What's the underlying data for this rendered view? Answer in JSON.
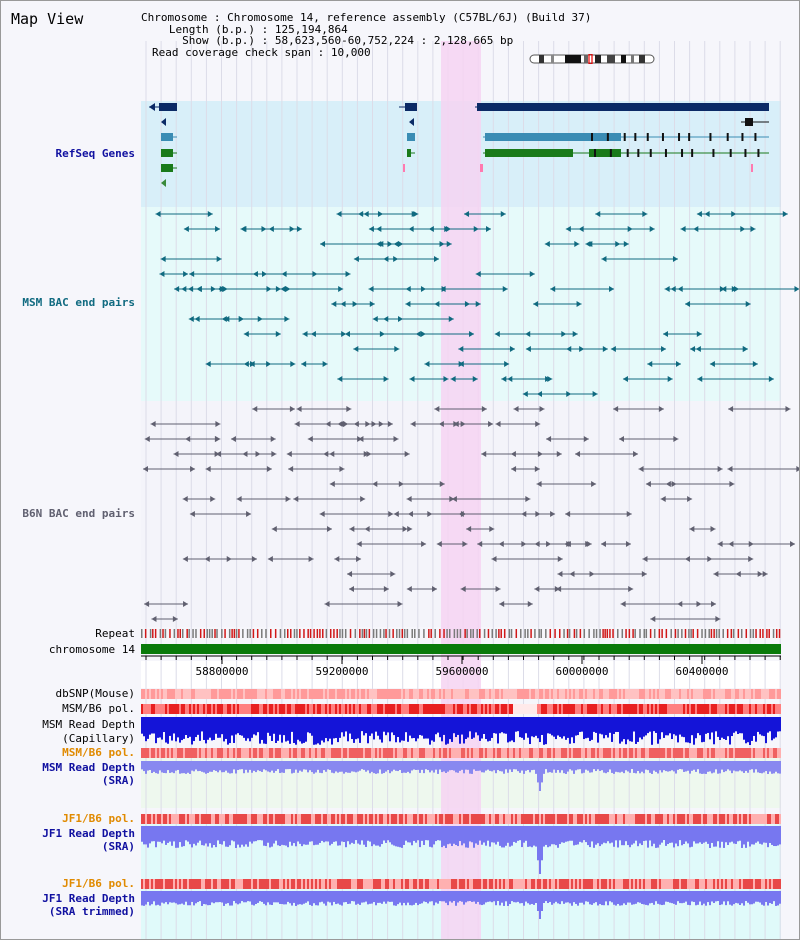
{
  "page": {
    "title": "Map View"
  },
  "header": {
    "rows": [
      {
        "key": "Chromosome",
        "value": "Chromosome 14, reference assembly (C57BL/6J) (Build 37)"
      },
      {
        "key": "Length (b.p.)",
        "value": "125,194,864"
      },
      {
        "key": "Show (b.p.)",
        "value": "58,623,560-60,752,224 : 2,128,665 bp"
      },
      {
        "key": "Read coverage check span",
        "value": "10,000"
      }
    ]
  },
  "tracks": {
    "refseq": {
      "label": "RefSeq Genes",
      "color": "#1010a0"
    },
    "msm_bac": {
      "label": "MSM BAC end pairs",
      "color": "#106a80"
    },
    "b6n_bac": {
      "label": "B6N BAC end pairs",
      "color": "#606070"
    },
    "repeat": {
      "label": "Repeat"
    },
    "chromosome": {
      "label": "chromosome 14",
      "color": "#0a7a0a"
    },
    "dbsnp": {
      "label": "dbSNP(Mouse)"
    },
    "msm_b6_pol_1": {
      "label": "MSM/B6 pol."
    },
    "msm_depth_cap": {
      "label_line1": "MSM Read Depth",
      "label_line2": "(Capillary)"
    },
    "msm_b6_pol_2": {
      "label": "MSM/B6 pol.",
      "color": "#e08a00"
    },
    "msm_depth_sra": {
      "label_line1": "MSM Read Depth",
      "label_line2": "(SRA)",
      "color": "#1010a0"
    },
    "jf1_b6_pol_1": {
      "label": "JF1/B6 pol.",
      "color": "#e08a00"
    },
    "jf1_depth_sra": {
      "label_line1": "JF1 Read Depth",
      "label_line2": "(SRA)",
      "color": "#1010a0"
    },
    "jf1_b6_pol_2": {
      "label": "JF1/B6 pol.",
      "color": "#e08a00"
    },
    "jf1_depth_trim": {
      "label_line1": "JF1 Read Depth",
      "label_line2": "(SRA trimmed)",
      "color": "#1010a0"
    }
  },
  "axis": {
    "ticks": [
      "58800000",
      "59200000",
      "59600000",
      "60000000",
      "60400000"
    ]
  },
  "highlight": {
    "color": "#f6d4f2"
  }
}
